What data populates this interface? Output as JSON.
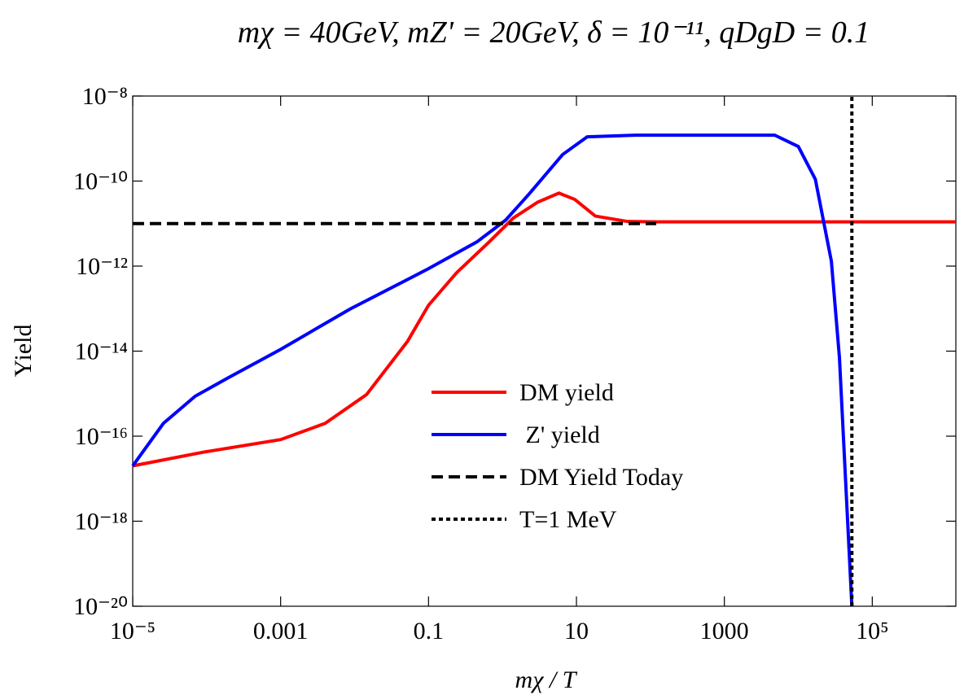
{
  "chart_data": {
    "type": "line",
    "title": "mχ = 40GeV, mZ' = 20GeV, δ = 10⁻¹¹, qDgD = 0.1",
    "x_label": "mχ / T",
    "y_label": "Yield",
    "xscale": "log",
    "yscale": "log",
    "xlim": [
      1e-05,
      1350000.0
    ],
    "ylim": [
      1e-20,
      1e-08
    ],
    "xticks": [
      {
        "value": 1e-05,
        "label": "10⁻⁵"
      },
      0.001,
      0.1,
      10,
      1000,
      {
        "value": 100000,
        "label": "10⁵"
      }
    ],
    "yticks": [
      {
        "value": 1e-20,
        "label": "10⁻²⁰"
      },
      {
        "value": 1e-18,
        "label": "10⁻¹⁸"
      },
      {
        "value": 1e-16,
        "label": "10⁻¹⁶"
      },
      {
        "value": 1e-14,
        "label": "10⁻¹⁴"
      },
      {
        "value": 1e-12,
        "label": "10⁻¹²"
      },
      {
        "value": 1e-10,
        "label": "10⁻¹⁰"
      },
      {
        "value": 1e-08,
        "label": "10⁻⁸"
      }
    ],
    "legend": "center",
    "series": [
      {
        "name": "DM yield",
        "color": "#ff0000",
        "dash": "solid",
        "x": [
          1e-05,
          9e-05,
          0.001,
          0.004,
          0.0145,
          0.052,
          0.1,
          0.24,
          0.66,
          1.4,
          3,
          5.8,
          9.5,
          18,
          49,
          120,
          1000,
          100000,
          1350000.0
        ],
        "values": [
          2e-17,
          4.2e-17,
          8.3e-17,
          2e-16,
          9.5e-16,
          1.7e-14,
          1.2e-13,
          7e-13,
          3.7e-12,
          1.35e-11,
          3.2e-11,
          5.2e-11,
          3.7e-11,
          1.5e-11,
          1.12e-11,
          1.1e-11,
          1.1e-11,
          1.1e-11,
          1.1e-11
        ]
      },
      {
        "name": " Z' yield",
        "color": "#0000ff",
        "dash": "solid",
        "x": [
          1e-05,
          2.6e-05,
          7e-05,
          0.00019,
          0.001,
          0.0087,
          0.1,
          0.45,
          1.1,
          2.3,
          6.5,
          14,
          63,
          4800,
          10000,
          17000,
          28000,
          36000,
          47000,
          53000
        ],
        "values": [
          2e-17,
          2e-16,
          8.7e-16,
          2.3e-15,
          1.1e-14,
          9.8e-14,
          8.7e-13,
          3.7e-12,
          1.2e-11,
          5e-11,
          4.2e-10,
          1.1e-09,
          1.2e-09,
          1.2e-09,
          6.5e-10,
          1.1e-10,
          1.3e-12,
          7e-15,
          6.6e-19,
          1e-20
        ]
      },
      {
        "name": "DM Yield Today",
        "color": "#000000",
        "dash": "dashed",
        "x": [
          1e-05,
          120
        ],
        "values": [
          1e-11,
          1e-11
        ]
      },
      {
        "name": "T=1 MeV",
        "color": "#000000",
        "dash": "dotted",
        "x": [
          53000,
          53000
        ],
        "values": [
          1e-20,
          1e-08
        ]
      }
    ]
  }
}
